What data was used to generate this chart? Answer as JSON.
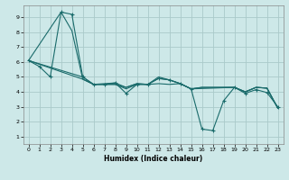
{
  "xlabel": "Humidex (Indice chaleur)",
  "background_color": "#cde8e8",
  "grid_color": "#aacaca",
  "line_color": "#1a6b6b",
  "xlim": [
    -0.5,
    23.5
  ],
  "ylim": [
    0.5,
    9.8
  ],
  "yticks": [
    1,
    2,
    3,
    4,
    5,
    6,
    7,
    8,
    9
  ],
  "xticks": [
    0,
    1,
    2,
    3,
    4,
    5,
    6,
    7,
    8,
    9,
    10,
    11,
    12,
    13,
    14,
    15,
    16,
    17,
    18,
    19,
    20,
    21,
    22,
    23
  ],
  "lines": [
    {
      "x": [
        0,
        1,
        2,
        3,
        4,
        5,
        6,
        7,
        8,
        9,
        10,
        11,
        12,
        13,
        14,
        15,
        16,
        17,
        18,
        19,
        20,
        21,
        22,
        23
      ],
      "y": [
        6.1,
        5.7,
        5.0,
        9.35,
        9.2,
        5.0,
        4.5,
        4.5,
        4.6,
        3.9,
        4.5,
        4.5,
        4.9,
        4.8,
        4.55,
        4.2,
        1.5,
        1.4,
        3.4,
        4.3,
        3.9,
        4.15,
        3.95,
        3.0
      ],
      "marker": "+"
    },
    {
      "x": [
        0,
        3,
        4,
        5,
        6,
        7,
        8,
        9,
        10,
        11,
        12,
        13,
        14,
        15,
        16,
        17,
        18,
        19,
        20,
        21,
        22,
        23
      ],
      "y": [
        6.1,
        9.35,
        8.1,
        4.85,
        4.5,
        4.5,
        4.5,
        4.3,
        4.55,
        4.5,
        4.9,
        4.8,
        4.55,
        4.2,
        4.3,
        4.3,
        4.3,
        4.3,
        4.0,
        4.3,
        4.25,
        2.9
      ],
      "marker": null
    },
    {
      "x": [
        0,
        5,
        6,
        7,
        8,
        9,
        10,
        11,
        12,
        13,
        14,
        15,
        16,
        17,
        18,
        19,
        20,
        21,
        22,
        23
      ],
      "y": [
        6.1,
        4.85,
        4.5,
        4.55,
        4.6,
        4.3,
        4.55,
        4.5,
        5.0,
        4.8,
        4.55,
        4.2,
        4.3,
        4.3,
        4.3,
        4.3,
        4.0,
        4.3,
        4.25,
        2.9
      ],
      "marker": null
    },
    {
      "x": [
        0,
        5,
        6,
        7,
        8,
        9,
        10,
        11,
        12,
        13,
        14,
        15,
        19,
        20,
        21,
        22,
        23
      ],
      "y": [
        6.1,
        5.0,
        4.5,
        4.5,
        4.5,
        4.2,
        4.5,
        4.5,
        4.55,
        4.5,
        4.55,
        4.2,
        4.3,
        4.0,
        4.3,
        4.25,
        2.9
      ],
      "marker": null
    }
  ]
}
